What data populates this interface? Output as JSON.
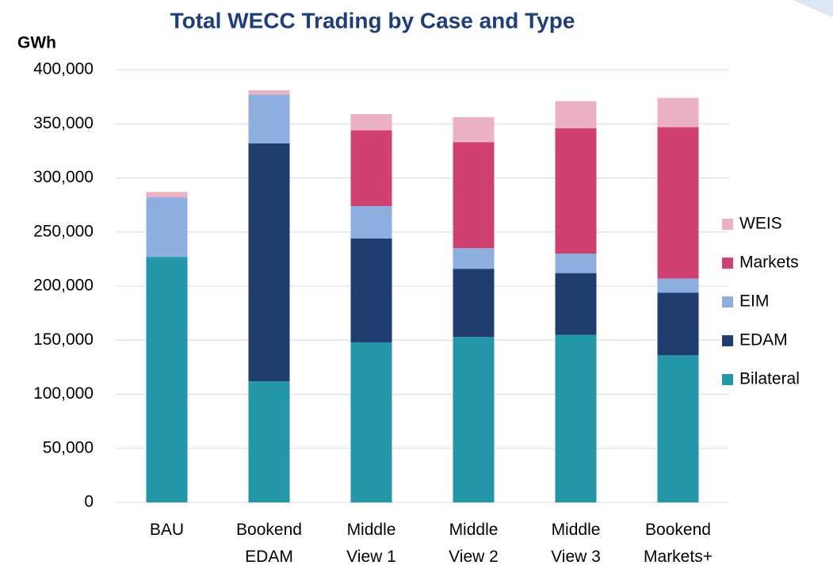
{
  "chart_data": {
    "type": "stacked_bar",
    "title": "Total WECC Trading by Case and Type",
    "y_label": "GWh",
    "categories": [
      "BAU",
      "Bookend\nEDAM",
      "Middle\nView 1",
      "Middle\nView 2",
      "Middle\nView 3",
      "Bookend\nMarkets+"
    ],
    "series": [
      {
        "name": "Bilateral",
        "color": "#2396a8",
        "values": [
          227000,
          112000,
          148000,
          153000,
          155000,
          136000
        ]
      },
      {
        "name": "EDAM",
        "color": "#1f3d6e",
        "values": [
          0,
          220000,
          96000,
          63000,
          57000,
          58000
        ]
      },
      {
        "name": "EIM",
        "color": "#8eaee0",
        "values": [
          55000,
          45000,
          30000,
          19000,
          18000,
          13000
        ]
      },
      {
        "name": "Markets",
        "color": "#d04070",
        "values": [
          0,
          0,
          70000,
          98000,
          116000,
          140000
        ]
      },
      {
        "name": "WEIS",
        "color": "#ecb1c4",
        "values": [
          5000,
          4000,
          15000,
          23000,
          25000,
          27000
        ]
      }
    ],
    "ylim": [
      0,
      400000
    ],
    "yticks": [
      0,
      {
        "value": 50000,
        "label": "50,000"
      },
      {
        "value": 100000,
        "label": "100,000"
      },
      {
        "value": 150000,
        "label": "150,000"
      },
      {
        "value": 200000,
        "label": "200,000"
      },
      {
        "value": 250000,
        "label": "250,000"
      },
      {
        "value": 300000,
        "label": "300,000"
      },
      {
        "value": 350000,
        "label": "350,000"
      },
      {
        "value": 400000,
        "label": "400,000"
      }
    ],
    "grid": true,
    "legend": "right"
  }
}
